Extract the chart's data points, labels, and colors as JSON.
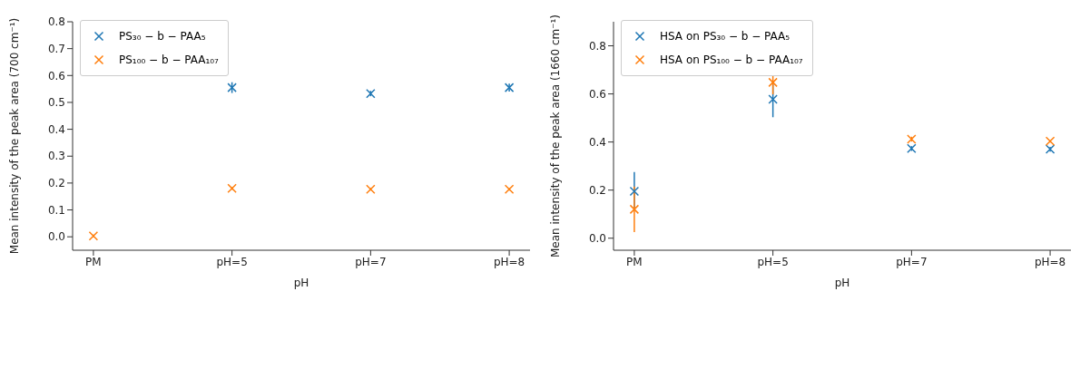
{
  "chart_data": [
    {
      "type": "scatter",
      "xlabel": "pH",
      "ylabel": "Mean intensity of the peak area (700 cm⁻¹)",
      "categories": [
        "PM",
        "pH=5",
        "pH=7",
        "pH=8"
      ],
      "ylim": [
        -0.05,
        0.8
      ],
      "yticks": [
        {
          "value": 0,
          "label": "0.0"
        },
        {
          "value": 0.1,
          "label": "0.1"
        },
        {
          "value": 0.2,
          "label": "0.2"
        },
        {
          "value": 0.3,
          "label": "0.3"
        },
        {
          "value": 0.4,
          "label": "0.4"
        },
        {
          "value": 0.5,
          "label": "0.5"
        },
        {
          "value": 0.6,
          "label": "0.6"
        },
        {
          "value": 0.7,
          "label": "0.7"
        },
        {
          "value": 0.8,
          "label": "0.8"
        }
      ],
      "legend": "top left",
      "marker": "cross",
      "grid": false,
      "series": [
        {
          "name": "PS₃₀ − b − PAA₅",
          "color": "#1f77b4",
          "values": [
            null,
            0.555,
            0.533,
            0.555
          ],
          "errors": [
            null,
            0.02,
            0.01,
            0.015
          ]
        },
        {
          "name": "PS₁₀₀ − b − PAA₁₀₇",
          "color": "#ff7f0e",
          "values": [
            0.003,
            0.18,
            0.177,
            0.177
          ],
          "errors": [
            0.005,
            0.005,
            0.005,
            0.005
          ]
        }
      ]
    },
    {
      "type": "scatter",
      "xlabel": "pH",
      "ylabel": "Mean intensity of the peak area (1660 cm⁻¹)",
      "categories": [
        "PM",
        "pH=5",
        "pH=7",
        "pH=8"
      ],
      "ylim": [
        -0.05,
        0.9
      ],
      "yticks": [
        {
          "value": 0,
          "label": "0.0"
        },
        {
          "value": 0.2,
          "label": "0.2"
        },
        {
          "value": 0.4,
          "label": "0.4"
        },
        {
          "value": 0.6,
          "label": "0.6"
        },
        {
          "value": 0.8,
          "label": "0.8"
        }
      ],
      "legend": "top left",
      "marker": "cross",
      "grid": false,
      "series": [
        {
          "name": "HSA on PS₃₀ − b − PAA₅",
          "color": "#1f77b4",
          "values": [
            0.195,
            0.578,
            0.373,
            0.37
          ],
          "errors": [
            0.08,
            0.075,
            0.01,
            0.01
          ]
        },
        {
          "name": "HSA on PS₁₀₀ − b − PAA₁₀₇",
          "color": "#ff7f0e",
          "values": [
            0.12,
            0.648,
            0.412,
            0.403
          ],
          "errors": [
            0.095,
            0.05,
            0.01,
            0.005
          ]
        }
      ]
    }
  ]
}
